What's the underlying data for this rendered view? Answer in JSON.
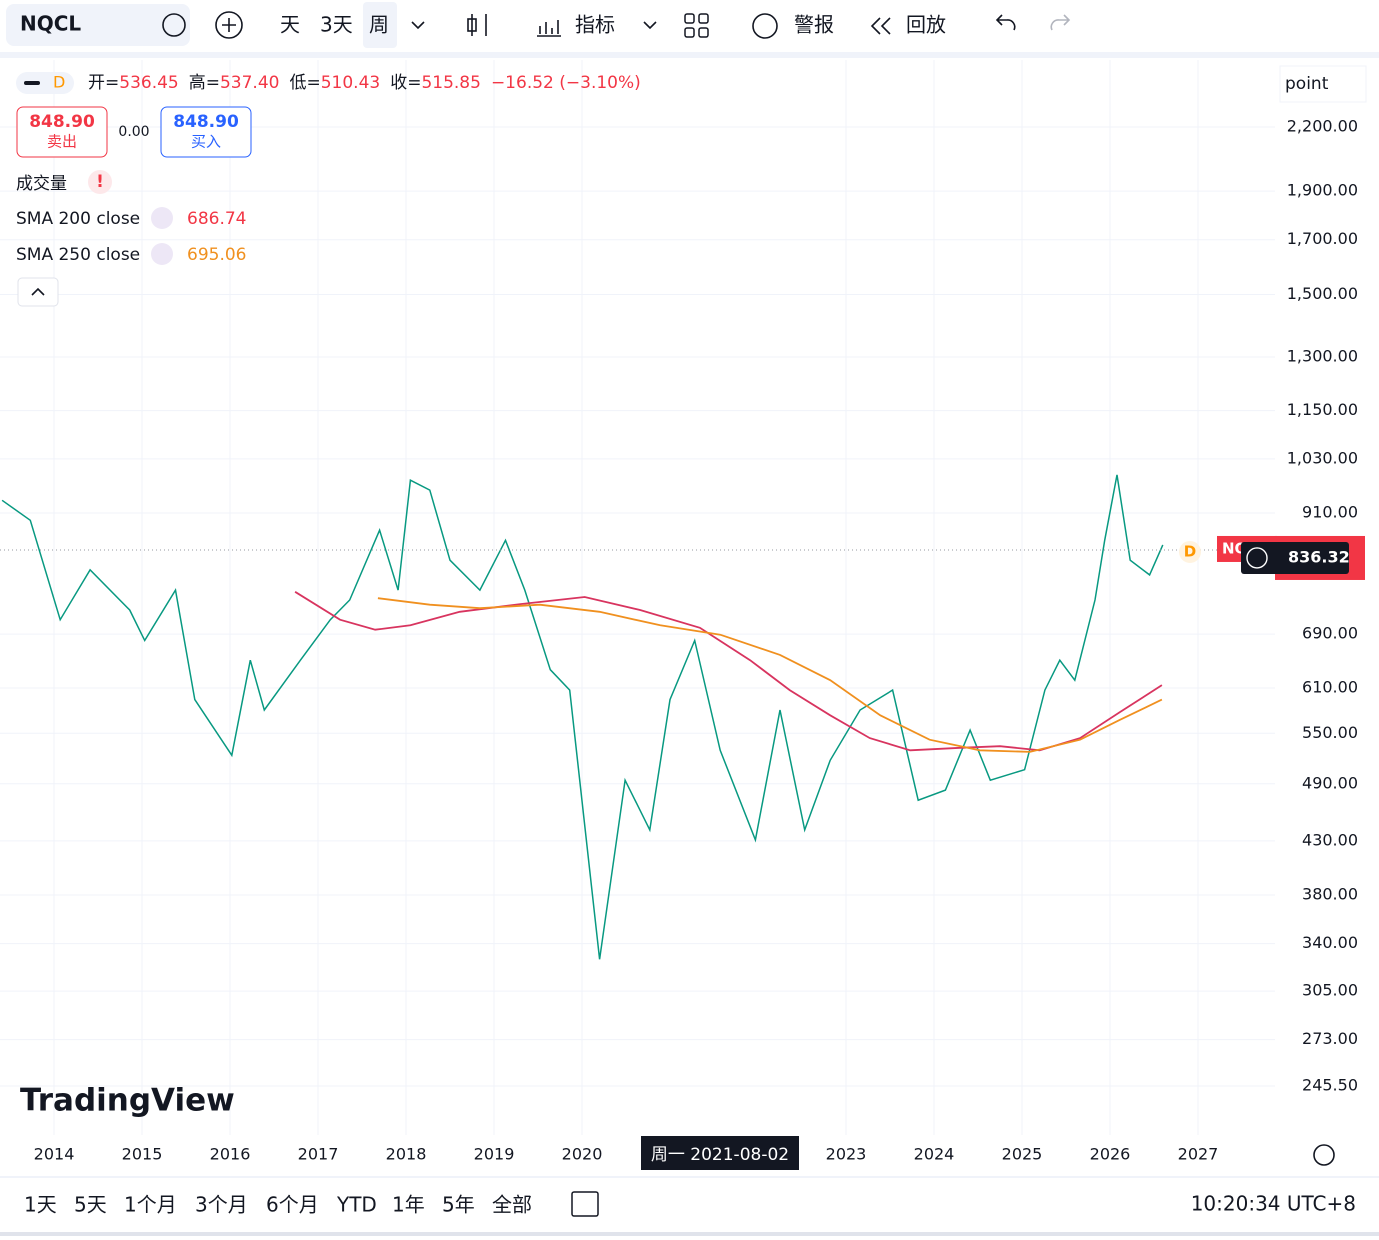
{
  "toolbar": {
    "symbol": "NQCL",
    "intervals": [
      "天",
      "3天",
      "周"
    ],
    "indicators": "指标",
    "alerts": "警报",
    "replay": "回放"
  },
  "legend": {
    "interval": "D",
    "open_label": "开=",
    "open": "536.45",
    "high_label": "高=",
    "high": "537.40",
    "low_label": "低=",
    "low": "510.43",
    "close_label": "收=",
    "close": "515.85",
    "change": "−16.52 (−3.10%)",
    "sell_price": "848.90",
    "sell": "卖出",
    "spread": "0.00",
    "buy_price": "848.90",
    "buy": "买入",
    "volume": "成交量",
    "sma200_name": "SMA 200 close",
    "sma200_value": "686.74",
    "sma250_name": "SMA 250 close",
    "sma250_value": "695.06"
  },
  "price_scale_unit": "point",
  "logo": "TradingView",
  "crosshair_label": "周一 2021-08-02",
  "symbol_tag": "NQ",
  "marker": "D",
  "ranges": [
    "1天",
    "5天",
    "1个月",
    "3个月",
    "6个月",
    "YTD",
    "1年",
    "5年",
    "全部"
  ],
  "clock": "10:20:34 UTC+8",
  "chart_data": {
    "type": "line",
    "log_scale": true,
    "grid": true,
    "xlim": [
      2013.386,
      2027.875
    ],
    "xticks": [
      2014,
      2015,
      2016,
      2017,
      2018,
      2019,
      2020,
      2023,
      2024,
      2025,
      2026,
      2027
    ],
    "ylim": [
      219.5,
      2564
    ],
    "yticks": [
      {
        "value": 2200,
        "label": "2,200.00"
      },
      {
        "value": 1900,
        "label": "1,900.00"
      },
      {
        "value": 1700,
        "label": "1,700.00"
      },
      {
        "value": 1500,
        "label": "1,500.00"
      },
      {
        "value": 1300,
        "label": "1,300.00"
      },
      {
        "value": 1150,
        "label": "1,150.00"
      },
      {
        "value": 1030,
        "label": "1,030.00"
      },
      {
        "value": 910,
        "label": "910.00"
      },
      {
        "value": 690,
        "label": "690.00"
      },
      {
        "value": 610,
        "label": "610.00"
      },
      {
        "value": 550,
        "label": "550.00"
      },
      {
        "value": 490,
        "label": "490.00"
      },
      {
        "value": 430,
        "label": "430.00"
      },
      {
        "value": 380,
        "label": "380.00"
      },
      {
        "value": 340,
        "label": "340.00"
      },
      {
        "value": 305,
        "label": "305.00"
      },
      {
        "value": 273,
        "label": "273.00"
      },
      {
        "value": 245.5,
        "label": "245.50"
      }
    ],
    "last_price": 836.32,
    "series": [
      {
        "name": "NQCL",
        "color": "#089981",
        "x": [
          2013.41,
          2013.73,
          2014.07,
          2014.41,
          2014.86,
          2015.03,
          2015.38,
          2015.6,
          2016.02,
          2016.23,
          2016.39,
          2016.8,
          2017.14,
          2017.36,
          2017.7,
          2017.91,
          2018.05,
          2018.27,
          2018.5,
          2018.84,
          2019.13,
          2019.35,
          2019.64,
          2019.86,
          2020.2,
          2020.49,
          2020.77,
          2021.0,
          2021.28,
          2021.57,
          2021.97,
          2022.25,
          2022.53,
          2022.82,
          2023.16,
          2023.53,
          2023.82,
          2024.13,
          2024.41,
          2024.64,
          2025.03,
          2025.26,
          2025.43,
          2025.6,
          2025.83,
          2025.94,
          2026.08,
          2026.23,
          2026.45,
          2026.6
        ],
        "values": [
          937,
          895,
          713,
          799,
          729,
          680,
          763,
          594,
          523,
          650,
          580,
          650,
          713,
          746,
          875,
          763,
          981,
          959,
          817,
          763,
          855,
          763,
          636,
          607,
          328,
          494,
          441,
          594,
          680,
          529,
          431,
          580,
          441,
          517,
          580,
          607,
          472,
          483,
          554,
          494,
          506,
          607,
          650,
          621,
          746,
          855,
          993,
          817,
          790,
          846
        ]
      },
      {
        "name": "SMA 200 close",
        "color": "#d8345f",
        "x": [
          2016.74,
          2017.25,
          2017.65,
          2018.05,
          2018.61,
          2019.3,
          2020.03,
          2020.66,
          2021.34,
          2021.91,
          2022.36,
          2022.82,
          2023.27,
          2023.73,
          2024.3,
          2024.75,
          2025.2,
          2025.66,
          2026.11,
          2026.59
        ],
        "values": [
          760,
          713,
          697,
          704,
          726,
          739,
          751,
          729,
          700,
          650,
          607,
          573,
          544,
          529,
          532,
          534,
          529,
          544,
          577,
          614
        ]
      },
      {
        "name": "SMA 250 close",
        "color": "#f0901f",
        "x": [
          2017.68,
          2018.27,
          2018.84,
          2019.52,
          2020.2,
          2020.89,
          2021.57,
          2022.25,
          2022.82,
          2023.39,
          2023.95,
          2024.52,
          2025.09,
          2025.66,
          2026.11,
          2026.59
        ],
        "values": [
          749,
          738,
          732,
          738,
          726,
          704,
          689,
          658,
          621,
          573,
          542,
          529,
          527,
          542,
          567,
          594
        ]
      }
    ]
  }
}
